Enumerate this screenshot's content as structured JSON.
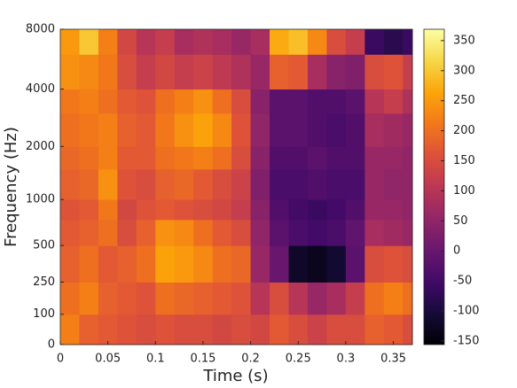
{
  "chart_data": {
    "type": "heatmap",
    "xlabel": "Time (s)",
    "ylabel": "Frequency (Hz)",
    "xbins": [
      0,
      0.02,
      0.04,
      0.06,
      0.08,
      0.1,
      0.12,
      0.14,
      0.16,
      0.18,
      0.2,
      0.22,
      0.24,
      0.26,
      0.28,
      0.3,
      0.32,
      0.34,
      0.36,
      0.37
    ],
    "ybins": [
      0,
      100,
      250,
      500,
      750,
      1000,
      1500,
      2000,
      3000,
      4000,
      6000,
      8000
    ],
    "z": [
      [
        220,
        180,
        170,
        160,
        150,
        160,
        150,
        150,
        140,
        150,
        140,
        170,
        150,
        130,
        150,
        150,
        180,
        170,
        150
      ],
      [
        200,
        220,
        180,
        170,
        160,
        200,
        190,
        180,
        170,
        160,
        100,
        150,
        100,
        60,
        80,
        120,
        200,
        220,
        200
      ],
      [
        180,
        200,
        170,
        180,
        200,
        260,
        250,
        230,
        200,
        190,
        60,
        0,
        -120,
        -130,
        -110,
        -20,
        150,
        160,
        150
      ],
      [
        170,
        180,
        200,
        150,
        180,
        240,
        230,
        200,
        170,
        150,
        50,
        -20,
        -40,
        -50,
        -40,
        -10,
        80,
        70,
        60
      ],
      [
        160,
        170,
        210,
        140,
        160,
        170,
        160,
        150,
        140,
        120,
        40,
        -30,
        -50,
        -60,
        -50,
        -30,
        60,
        60,
        50
      ],
      [
        180,
        190,
        240,
        160,
        150,
        180,
        190,
        170,
        150,
        130,
        30,
        -40,
        -40,
        -30,
        -40,
        -40,
        60,
        50,
        50
      ],
      [
        190,
        200,
        220,
        170,
        170,
        200,
        210,
        220,
        200,
        150,
        40,
        -30,
        -30,
        -20,
        -30,
        -30,
        60,
        60,
        50
      ],
      [
        200,
        210,
        220,
        180,
        170,
        210,
        240,
        260,
        230,
        160,
        50,
        -20,
        -20,
        -30,
        -40,
        -30,
        80,
        70,
        60
      ],
      [
        210,
        220,
        200,
        170,
        160,
        200,
        220,
        240,
        200,
        150,
        40,
        -20,
        -20,
        -30,
        -30,
        -20,
        100,
        120,
        90
      ],
      [
        240,
        230,
        210,
        150,
        120,
        140,
        120,
        130,
        110,
        90,
        60,
        180,
        170,
        80,
        40,
        30,
        150,
        160,
        120
      ],
      [
        250,
        300,
        220,
        140,
        100,
        120,
        80,
        90,
        80,
        60,
        80,
        270,
        290,
        230,
        150,
        120,
        -60,
        -80,
        -60
      ]
    ],
    "xlim": [
      0,
      0.37
    ],
    "xticks": [
      0,
      0.05,
      0.1,
      0.15,
      0.2,
      0.25,
      0.3,
      0.35
    ],
    "ylim": [
      0,
      8000
    ],
    "yscale": "symlog",
    "ylinthresh": 250,
    "yticks": [
      0,
      100,
      250,
      500,
      1000,
      2000,
      4000,
      8000
    ],
    "colormap": "inferno",
    "clim": [
      -156,
      369
    ],
    "cticks": [
      -150,
      -100,
      -50,
      0,
      50,
      100,
      150,
      200,
      250,
      300,
      350
    ]
  }
}
